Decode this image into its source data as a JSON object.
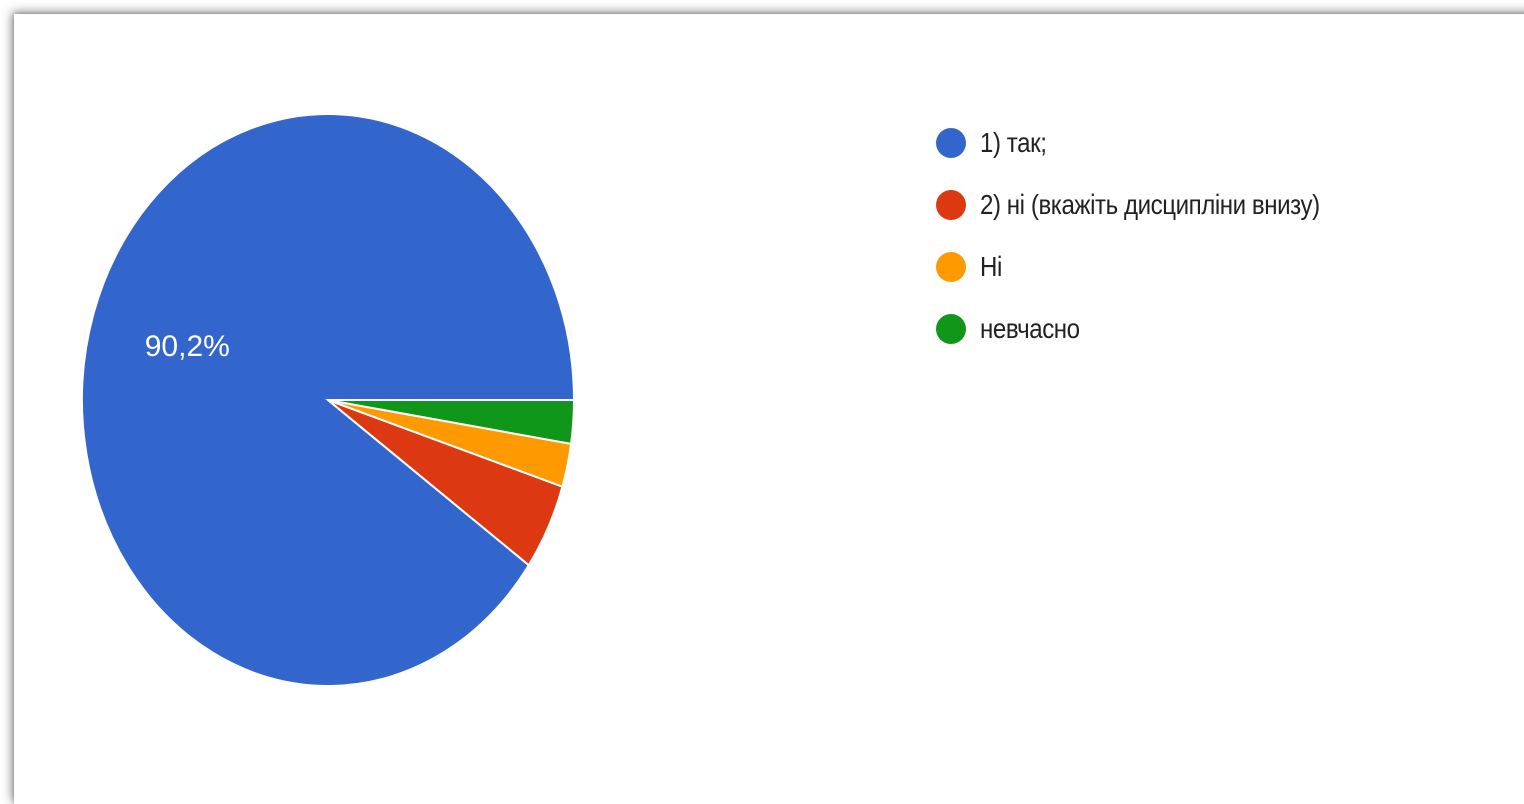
{
  "chart_data": {
    "type": "pie",
    "slices": [
      {
        "label": "1) так;",
        "value": 90.2,
        "color": "#3366cc",
        "data_label": "90,2%"
      },
      {
        "label": "2) ні (вкажіть дисципліни внизу)",
        "value": 4.9,
        "color": "#dc3912",
        "data_label": ""
      },
      {
        "label": "Ні",
        "value": 2.45,
        "color": "#ff9900",
        "data_label": ""
      },
      {
        "label": "невчасно",
        "value": 2.45,
        "color": "#109618",
        "data_label": ""
      }
    ],
    "start": "3 o'clock",
    "direction": "counterclockwise",
    "legend_position": "right"
  }
}
